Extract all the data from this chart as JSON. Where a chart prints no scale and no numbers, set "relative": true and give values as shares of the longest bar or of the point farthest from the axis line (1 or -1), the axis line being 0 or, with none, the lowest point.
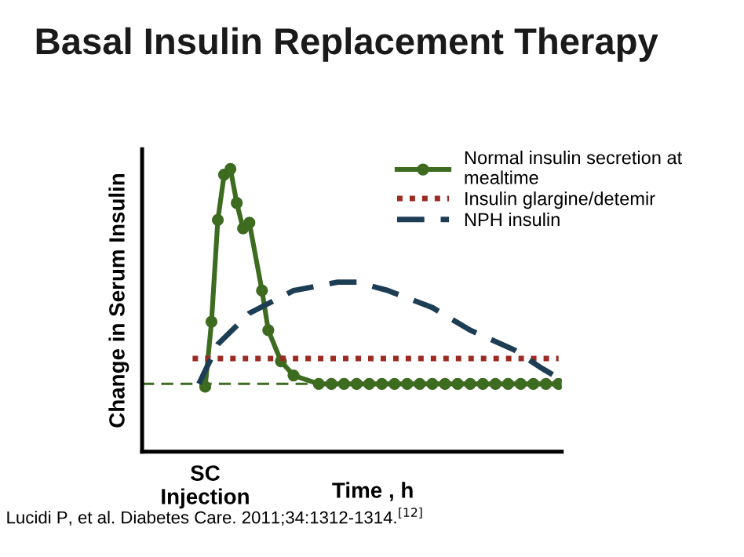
{
  "chart_data": {
    "type": "line",
    "relative": true,
    "title": "Basal Insulin Replacement Therapy",
    "xlabel": "Time , h",
    "ylabel": "Change in Serum Insulin",
    "categories": [
      null,
      null,
      null,
      null,
      null,
      null,
      null,
      null,
      null,
      null,
      null,
      null,
      null,
      null,
      null,
      null,
      null,
      null,
      null,
      null,
      null,
      null,
      null,
      null,
      null,
      null,
      null,
      null,
      null,
      null,
      null,
      null,
      null,
      null,
      null,
      null,
      null,
      null,
      null,
      null,
      null,
      null,
      null,
      null,
      null,
      null,
      null,
      null,
      null,
      null,
      null,
      null,
      null,
      null,
      null,
      null,
      null,
      null,
      null,
      null,
      null,
      null,
      null,
      null,
      null,
      null,
      null
    ],
    "legend": "top right",
    "annotations": [
      "SC\nInjection",
      "Lucidi P, et al. Diabetes Care. 2011;34:1312-1314.$^{[12]}$"
    ],
    "ref_lines": [
      {
        "axis": "y",
        "value": 0.24,
        "color": "#3d6b1f",
        "line_style": "dashed"
      }
    ],
    "series": [
      {
        "name": "Normal insulin secretion at\nmealtime",
        "color": "#3d6b1f",
        "marker": "circle",
        "line_style": "solid",
        "values": [
          null,
          null,
          null,
          null,
          null,
          null,
          null,
          null,
          null,
          null,
          0.23,
          0.46,
          0.82,
          0.98,
          1.0,
          0.88,
          0.79,
          0.81,
          null,
          0.57,
          0.43,
          null,
          0.32,
          null,
          0.27,
          null,
          null,
          null,
          0.24,
          null,
          0.24,
          null,
          0.24,
          null,
          0.24,
          null,
          0.24,
          null,
          0.24,
          null,
          0.24,
          null,
          0.24,
          null,
          0.24,
          null,
          0.24,
          null,
          0.24,
          null,
          0.24,
          null,
          0.24,
          null,
          0.24,
          null,
          0.24,
          null,
          0.24,
          null,
          0.24,
          null,
          0.24,
          null,
          0.24,
          null,
          0.24
        ]
      },
      {
        "name": "Insulin glargine/detemir",
        "color": "#9b2a22",
        "marker": "none",
        "line_style": "dotted",
        "values": [
          null,
          null,
          null,
          null,
          null,
          null,
          null,
          null,
          0.33,
          null,
          null,
          null,
          null,
          null,
          null,
          null,
          null,
          null,
          null,
          null,
          null,
          null,
          null,
          null,
          null,
          null,
          null,
          null,
          null,
          null,
          null,
          null,
          null,
          null,
          null,
          null,
          null,
          null,
          null,
          null,
          null,
          null,
          null,
          null,
          null,
          null,
          null,
          null,
          null,
          null,
          null,
          null,
          null,
          null,
          null,
          null,
          null,
          null,
          null,
          null,
          null,
          null,
          null,
          null,
          null,
          null,
          0.33
        ]
      },
      {
        "name": "NPH insulin",
        "color": "#1d3d55",
        "marker": "none",
        "line_style": "dashed",
        "values": [
          null,
          null,
          null,
          null,
          null,
          null,
          null,
          null,
          null,
          0.24,
          null,
          null,
          0.38,
          null,
          null,
          null,
          null,
          0.49,
          null,
          null,
          null,
          null,
          null,
          null,
          0.57,
          null,
          null,
          null,
          null,
          null,
          null,
          0.6,
          null,
          null,
          0.6,
          null,
          null,
          null,
          null,
          0.57,
          null,
          null,
          null,
          null,
          null,
          null,
          0.51,
          null,
          null,
          null,
          null,
          null,
          0.43,
          null,
          null,
          null,
          null,
          null,
          null,
          0.36,
          null,
          null,
          null,
          0.3,
          null,
          null,
          0.26
        ]
      }
    ]
  }
}
